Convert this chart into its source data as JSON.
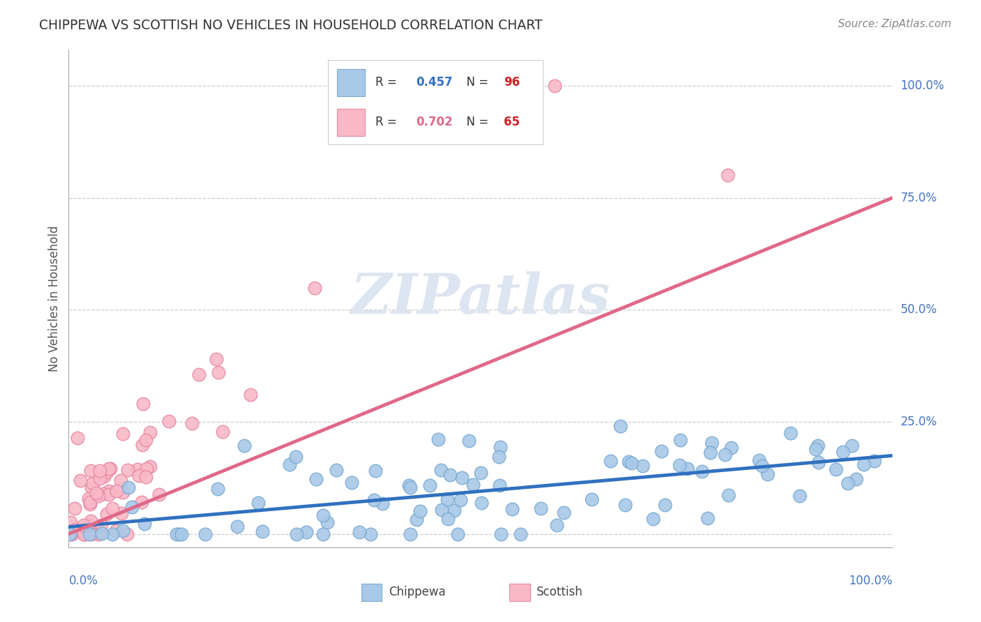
{
  "title": "CHIPPEWA VS SCOTTISH NO VEHICLES IN HOUSEHOLD CORRELATION CHART",
  "source": "Source: ZipAtlas.com",
  "ylabel": "No Vehicles in Household",
  "ytick_labels": [
    "0.0%",
    "25.0%",
    "50.0%",
    "75.0%",
    "100.0%"
  ],
  "ytick_values": [
    0.0,
    25.0,
    50.0,
    75.0,
    100.0
  ],
  "chippewa_color": "#a8c8e8",
  "chippewa_edge": "#7aaad0",
  "chippewa_line": "#3070c0",
  "scottish_color": "#f8b8c8",
  "scottish_edge": "#e888a0",
  "scottish_line": "#e06888",
  "chippewa_R": 0.457,
  "chippewa_N": 96,
  "scottish_R": 0.702,
  "scottish_N": 65,
  "background_color": "#ffffff",
  "grid_color": "#cccccc",
  "title_color": "#333333",
  "axis_label_color": "#4472c4",
  "watermark_color": "#dde5f0",
  "legend_color": "#cccccc"
}
